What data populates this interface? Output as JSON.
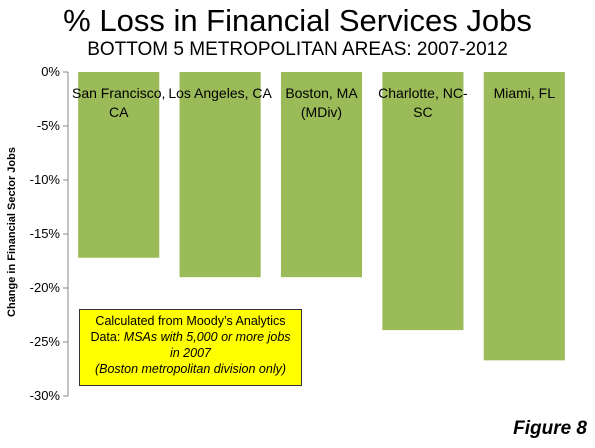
{
  "title": "% Loss in Financial Services Jobs",
  "subtitle": "BOTTOM 5 METROPOLITAN AREAS: 2007-2012",
  "figure_label": "Figure 8",
  "note": {
    "line1": "Calculated from Moody’s Analytics",
    "line2a": "Data: ",
    "line2b": "MSAs with 5,000 or more jobs",
    "line3": "in 2007",
    "line4": "(Boston metropolitan division only)"
  },
  "colors": {
    "bar": "#9bbb59",
    "note_bg": "#ffff00"
  },
  "chart_data": {
    "type": "bar",
    "title": "% Loss in Financial Services Jobs",
    "subtitle": "BOTTOM 5 METROPOLITAN AREAS: 2007-2012",
    "ylabel": "Change in Financial Sector Jobs",
    "xlabel": "",
    "categories": [
      [
        "San Francisco,",
        "CA"
      ],
      [
        "Los Angeles, CA"
      ],
      [
        "Boston, MA",
        "(MDiv)"
      ],
      [
        "Charlotte, NC-",
        "SC"
      ],
      [
        "Miami, FL"
      ]
    ],
    "values": [
      -17.2,
      -19.0,
      -19.0,
      -23.9,
      -26.7
    ],
    "ylim": [
      -30,
      0
    ],
    "yticks": [
      0,
      -5,
      -10,
      -15,
      -20,
      -25,
      -30
    ],
    "ytick_labels": [
      "0%",
      "-5%",
      "-10%",
      "-15%",
      "-20%",
      "-25%",
      "-30%"
    ],
    "grid": false,
    "legend": "none"
  }
}
